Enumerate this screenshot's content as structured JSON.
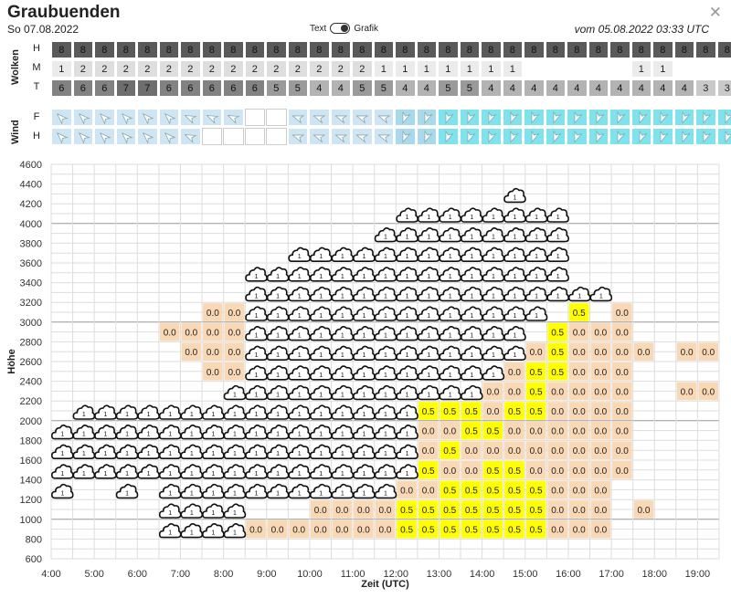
{
  "header": {
    "title": "Graubuenden",
    "date": "So 07.08.2022",
    "issued": "vom 05.08.2022 03:33 UTC",
    "close_icon": "close-icon"
  },
  "toggle": {
    "left_label": "Text",
    "right_label": "Grafik",
    "state": "Grafik"
  },
  "clouds": {
    "label": "Wolken",
    "rows": [
      {
        "label": "H",
        "values": [
          "8",
          "8",
          "8",
          "8",
          "8",
          "8",
          "8",
          "8",
          "8",
          "8",
          "8",
          "8",
          "8",
          "8",
          "8",
          "8",
          "8",
          "8",
          "8",
          "8",
          "8",
          "8",
          "8",
          "8",
          "8",
          "8",
          "8",
          "8",
          "8",
          "8",
          "8",
          "8"
        ]
      },
      {
        "label": "M",
        "values": [
          "1",
          "2",
          "2",
          "2",
          "2",
          "2",
          "2",
          "2",
          "2",
          "2",
          "2",
          "2",
          "2",
          "2",
          "2",
          "1",
          "1",
          "1",
          "1",
          "1",
          "1",
          "1",
          "",
          "",
          "",
          "",
          "",
          "1",
          "1",
          "",
          "",
          ""
        ]
      },
      {
        "label": "T",
        "values": [
          "6",
          "6",
          "6",
          "7",
          "7",
          "6",
          "6",
          "6",
          "6",
          "6",
          "5",
          "5",
          "4",
          "4",
          "5",
          "5",
          "4",
          "4",
          "5",
          "5",
          "4",
          "4",
          "4",
          "4",
          "4",
          "4",
          "4",
          "4",
          "4",
          "4",
          "3",
          "3"
        ]
      }
    ],
    "colors": {
      "8": "#5a5a5a",
      "7": "#6e6e6e",
      "6": "#828282",
      "5": "#9a9a9a",
      "4": "#b3b3b3",
      "3": "#c9c9c9",
      "2": "#dedede",
      "1": "#ebebeb",
      "": "#ffffff"
    }
  },
  "wind": {
    "label": "Wind",
    "row_labels": [
      "F",
      "H"
    ],
    "icon": "wind-arrow-icon"
  },
  "chart_data": {
    "type": "heatmap",
    "xlabel": "Zeit (UTC)",
    "ylabel": "Höhe",
    "x_ticks": [
      "4:00",
      "5:00",
      "6:00",
      "7:00",
      "8:00",
      "9:00",
      "10:00",
      "11:00",
      "12:00",
      "13:00",
      "14:00",
      "15:00",
      "16:00",
      "17:00",
      "18:00",
      "19:00"
    ],
    "x_range": [
      "4:00",
      "19:30"
    ],
    "x_step_minutes": 30,
    "y_ticks": [
      600,
      800,
      1000,
      1200,
      1400,
      1600,
      1800,
      2000,
      2200,
      2400,
      2600,
      2800,
      3000,
      3200,
      3400,
      3600,
      3800,
      4000,
      4200,
      4400,
      4600
    ],
    "ylim": [
      600,
      4600
    ],
    "cloud_icon": "cloud-icon",
    "legend_colors": {
      "0.0": "#f9d9b5",
      "0.5": "#ffff00"
    },
    "cloud_cells": [
      [
        0,
        1300
      ],
      [
        0,
        1500
      ],
      [
        1,
        1500
      ],
      [
        2,
        1500
      ],
      [
        3,
        1500
      ],
      [
        4,
        1500
      ],
      [
        5,
        1500
      ],
      [
        6,
        1500
      ],
      [
        7,
        1500
      ],
      [
        8,
        1500
      ],
      [
        9,
        1500
      ],
      [
        10,
        1500
      ],
      [
        11,
        1500
      ],
      [
        12,
        1500
      ],
      [
        13,
        1500
      ],
      [
        14,
        1500
      ],
      [
        15,
        1500
      ],
      [
        16,
        1500
      ],
      [
        0,
        1700
      ],
      [
        1,
        1700
      ],
      [
        2,
        1700
      ],
      [
        3,
        1700
      ],
      [
        4,
        1700
      ],
      [
        5,
        1700
      ],
      [
        6,
        1700
      ],
      [
        7,
        1700
      ],
      [
        8,
        1700
      ],
      [
        9,
        1700
      ],
      [
        10,
        1700
      ],
      [
        11,
        1700
      ],
      [
        12,
        1700
      ],
      [
        13,
        1700
      ],
      [
        14,
        1700
      ],
      [
        15,
        1700
      ],
      [
        16,
        1700
      ],
      [
        0,
        1900
      ],
      [
        1,
        1900
      ],
      [
        2,
        1900
      ],
      [
        3,
        1900
      ],
      [
        4,
        1900
      ],
      [
        5,
        1900
      ],
      [
        6,
        1900
      ],
      [
        7,
        1900
      ],
      [
        8,
        1900
      ],
      [
        9,
        1900
      ],
      [
        10,
        1900
      ],
      [
        11,
        1900
      ],
      [
        12,
        1900
      ],
      [
        13,
        1900
      ],
      [
        14,
        1900
      ],
      [
        15,
        1900
      ],
      [
        16,
        1900
      ],
      [
        1,
        2100
      ],
      [
        2,
        2100
      ],
      [
        3,
        2100
      ],
      [
        4,
        2100
      ],
      [
        5,
        2100
      ],
      [
        6,
        2100
      ],
      [
        7,
        2100
      ],
      [
        8,
        2100
      ],
      [
        9,
        2100
      ],
      [
        10,
        2100
      ],
      [
        11,
        2100
      ],
      [
        12,
        2100
      ],
      [
        13,
        2100
      ],
      [
        14,
        2100
      ],
      [
        15,
        2100
      ],
      [
        16,
        2100
      ],
      [
        8,
        2300
      ],
      [
        9,
        2300
      ],
      [
        10,
        2300
      ],
      [
        11,
        2300
      ],
      [
        12,
        2300
      ],
      [
        13,
        2300
      ],
      [
        14,
        2300
      ],
      [
        15,
        2300
      ],
      [
        16,
        2300
      ],
      [
        17,
        2300
      ],
      [
        18,
        2300
      ],
      [
        19,
        2300
      ],
      [
        9,
        2500
      ],
      [
        10,
        2500
      ],
      [
        11,
        2500
      ],
      [
        12,
        2500
      ],
      [
        13,
        2500
      ],
      [
        14,
        2500
      ],
      [
        15,
        2500
      ],
      [
        16,
        2500
      ],
      [
        17,
        2500
      ],
      [
        18,
        2500
      ],
      [
        19,
        2500
      ],
      [
        20,
        2500
      ],
      [
        9,
        2700
      ],
      [
        10,
        2700
      ],
      [
        11,
        2700
      ],
      [
        12,
        2700
      ],
      [
        13,
        2700
      ],
      [
        14,
        2700
      ],
      [
        15,
        2700
      ],
      [
        16,
        2700
      ],
      [
        17,
        2700
      ],
      [
        18,
        2700
      ],
      [
        19,
        2700
      ],
      [
        20,
        2700
      ],
      [
        21,
        2700
      ],
      [
        9,
        2900
      ],
      [
        10,
        2900
      ],
      [
        11,
        2900
      ],
      [
        12,
        2900
      ],
      [
        13,
        2900
      ],
      [
        14,
        2900
      ],
      [
        15,
        2900
      ],
      [
        16,
        2900
      ],
      [
        17,
        2900
      ],
      [
        18,
        2900
      ],
      [
        19,
        2900
      ],
      [
        20,
        2900
      ],
      [
        21,
        2900
      ],
      [
        9,
        3100
      ],
      [
        10,
        3100
      ],
      [
        11,
        3100
      ],
      [
        12,
        3100
      ],
      [
        13,
        3100
      ],
      [
        14,
        3100
      ],
      [
        15,
        3100
      ],
      [
        16,
        3100
      ],
      [
        17,
        3100
      ],
      [
        18,
        3100
      ],
      [
        19,
        3100
      ],
      [
        20,
        3100
      ],
      [
        21,
        3100
      ],
      [
        22,
        3100
      ],
      [
        9,
        3300
      ],
      [
        10,
        3300
      ],
      [
        11,
        3300
      ],
      [
        12,
        3300
      ],
      [
        13,
        3300
      ],
      [
        14,
        3300
      ],
      [
        15,
        3300
      ],
      [
        16,
        3300
      ],
      [
        17,
        3300
      ],
      [
        18,
        3300
      ],
      [
        19,
        3300
      ],
      [
        20,
        3300
      ],
      [
        21,
        3300
      ],
      [
        22,
        3300
      ],
      [
        23,
        3300
      ],
      [
        24,
        3300
      ],
      [
        25,
        3300
      ],
      [
        9,
        3500
      ],
      [
        10,
        3500
      ],
      [
        11,
        3500
      ],
      [
        12,
        3500
      ],
      [
        13,
        3500
      ],
      [
        14,
        3500
      ],
      [
        15,
        3500
      ],
      [
        16,
        3500
      ],
      [
        17,
        3500
      ],
      [
        18,
        3500
      ],
      [
        19,
        3500
      ],
      [
        20,
        3500
      ],
      [
        21,
        3500
      ],
      [
        22,
        3500
      ],
      [
        23,
        3500
      ],
      [
        11,
        3700
      ],
      [
        12,
        3700
      ],
      [
        13,
        3700
      ],
      [
        14,
        3700
      ],
      [
        15,
        3700
      ],
      [
        16,
        3700
      ],
      [
        17,
        3700
      ],
      [
        18,
        3700
      ],
      [
        19,
        3700
      ],
      [
        20,
        3700
      ],
      [
        21,
        3700
      ],
      [
        22,
        3700
      ],
      [
        23,
        3700
      ],
      [
        15,
        3900
      ],
      [
        16,
        3900
      ],
      [
        17,
        3900
      ],
      [
        18,
        3900
      ],
      [
        19,
        3900
      ],
      [
        20,
        3900
      ],
      [
        21,
        3900
      ],
      [
        22,
        3900
      ],
      [
        23,
        3900
      ],
      [
        16,
        4100
      ],
      [
        17,
        4100
      ],
      [
        18,
        4100
      ],
      [
        19,
        4100
      ],
      [
        20,
        4100
      ],
      [
        21,
        4100
      ],
      [
        22,
        4100
      ],
      [
        23,
        4100
      ],
      [
        21,
        4300
      ],
      [
        5,
        900
      ],
      [
        6,
        900
      ],
      [
        7,
        900
      ],
      [
        8,
        900
      ],
      [
        5,
        1100
      ],
      [
        6,
        1100
      ],
      [
        7,
        1100
      ],
      [
        8,
        1100
      ],
      [
        3,
        1300
      ],
      [
        5,
        1300
      ],
      [
        6,
        1300
      ],
      [
        7,
        1300
      ],
      [
        8,
        1300
      ],
      [
        9,
        1300
      ],
      [
        10,
        1300
      ],
      [
        11,
        1300
      ],
      [
        12,
        1300
      ],
      [
        13,
        1300
      ],
      [
        14,
        1300
      ],
      [
        15,
        1300
      ]
    ],
    "value_cells": [
      [
        9,
        900,
        "0.0"
      ],
      [
        10,
        900,
        "0.0"
      ],
      [
        11,
        900,
        "0.0"
      ],
      [
        12,
        900,
        "0.0"
      ],
      [
        13,
        900,
        "0.0"
      ],
      [
        14,
        900,
        "0.0"
      ],
      [
        15,
        900,
        "0.0"
      ],
      [
        16,
        900,
        "0.5"
      ],
      [
        17,
        900,
        "0.5"
      ],
      [
        18,
        900,
        "0.5"
      ],
      [
        19,
        900,
        "0.5"
      ],
      [
        20,
        900,
        "0.5"
      ],
      [
        21,
        900,
        "0.5"
      ],
      [
        22,
        900,
        "0.5"
      ],
      [
        23,
        900,
        "0.0"
      ],
      [
        24,
        900,
        "0.0"
      ],
      [
        25,
        900,
        "0.0"
      ],
      [
        12,
        1100,
        "0.0"
      ],
      [
        13,
        1100,
        "0.0"
      ],
      [
        14,
        1100,
        "0.0"
      ],
      [
        15,
        1100,
        "0.0"
      ],
      [
        16,
        1100,
        "0.5"
      ],
      [
        17,
        1100,
        "0.5"
      ],
      [
        18,
        1100,
        "0.5"
      ],
      [
        19,
        1100,
        "0.5"
      ],
      [
        20,
        1100,
        "0.5"
      ],
      [
        21,
        1100,
        "0.5"
      ],
      [
        22,
        1100,
        "0.5"
      ],
      [
        23,
        1100,
        "0.0"
      ],
      [
        24,
        1100,
        "0.0"
      ],
      [
        25,
        1100,
        "0.0"
      ],
      [
        27,
        1100,
        "0.0"
      ],
      [
        16,
        1300,
        "0.0"
      ],
      [
        17,
        1300,
        "0.0"
      ],
      [
        18,
        1300,
        "0.5"
      ],
      [
        19,
        1300,
        "0.5"
      ],
      [
        20,
        1300,
        "0.5"
      ],
      [
        21,
        1300,
        "0.5"
      ],
      [
        22,
        1300,
        "0.5"
      ],
      [
        23,
        1300,
        "0.0"
      ],
      [
        24,
        1300,
        "0.0"
      ],
      [
        25,
        1300,
        "0.0"
      ],
      [
        17,
        1500,
        "0.5"
      ],
      [
        18,
        1500,
        "0.0"
      ],
      [
        19,
        1500,
        "0.0"
      ],
      [
        20,
        1500,
        "0.5"
      ],
      [
        21,
        1500,
        "0.5"
      ],
      [
        22,
        1500,
        "0.0"
      ],
      [
        23,
        1500,
        "0.0"
      ],
      [
        24,
        1500,
        "0.0"
      ],
      [
        25,
        1500,
        "0.0"
      ],
      [
        26,
        1500,
        "0.0"
      ],
      [
        17,
        1700,
        "0.0"
      ],
      [
        18,
        1700,
        "0.5"
      ],
      [
        19,
        1700,
        "0.0"
      ],
      [
        20,
        1700,
        "0.0"
      ],
      [
        21,
        1700,
        "0.0"
      ],
      [
        22,
        1700,
        "0.0"
      ],
      [
        23,
        1700,
        "0.0"
      ],
      [
        24,
        1700,
        "0.0"
      ],
      [
        25,
        1700,
        "0.0"
      ],
      [
        26,
        1700,
        "0.0"
      ],
      [
        17,
        1900,
        "0.0"
      ],
      [
        18,
        1900,
        "0.0"
      ],
      [
        19,
        1900,
        "0.5"
      ],
      [
        20,
        1900,
        "0.5"
      ],
      [
        21,
        1900,
        "0.0"
      ],
      [
        22,
        1900,
        "0.0"
      ],
      [
        23,
        1900,
        "0.0"
      ],
      [
        24,
        1900,
        "0.0"
      ],
      [
        25,
        1900,
        "0.0"
      ],
      [
        26,
        1900,
        "0.0"
      ],
      [
        17,
        2100,
        "0.5"
      ],
      [
        18,
        2100,
        "0.5"
      ],
      [
        19,
        2100,
        "0.5"
      ],
      [
        20,
        2100,
        "0.0"
      ],
      [
        21,
        2100,
        "0.5"
      ],
      [
        22,
        2100,
        "0.5"
      ],
      [
        23,
        2100,
        "0.0"
      ],
      [
        24,
        2100,
        "0.0"
      ],
      [
        25,
        2100,
        "0.0"
      ],
      [
        26,
        2100,
        "0.0"
      ],
      [
        20,
        2300,
        "0.0"
      ],
      [
        21,
        2300,
        "0.0"
      ],
      [
        22,
        2300,
        "0.5"
      ],
      [
        23,
        2300,
        "0.0"
      ],
      [
        24,
        2300,
        "0.0"
      ],
      [
        25,
        2300,
        "0.0"
      ],
      [
        26,
        2300,
        "0.0"
      ],
      [
        29,
        2300,
        "0.0"
      ],
      [
        30,
        2300,
        "0.0"
      ],
      [
        21,
        2500,
        "0.0"
      ],
      [
        22,
        2500,
        "0.5"
      ],
      [
        23,
        2500,
        "0.5"
      ],
      [
        24,
        2500,
        "0.0"
      ],
      [
        25,
        2500,
        "0.0"
      ],
      [
        26,
        2500,
        "0.0"
      ],
      [
        22,
        2700,
        "0.0"
      ],
      [
        23,
        2700,
        "0.5"
      ],
      [
        24,
        2700,
        "0.0"
      ],
      [
        25,
        2700,
        "0.0"
      ],
      [
        26,
        2700,
        "0.0"
      ],
      [
        27,
        2700,
        "0.0"
      ],
      [
        29,
        2700,
        "0.0"
      ],
      [
        30,
        2700,
        "0.0"
      ],
      [
        23,
        2900,
        "0.5"
      ],
      [
        24,
        2900,
        "0.0"
      ],
      [
        25,
        2900,
        "0.0"
      ],
      [
        26,
        2900,
        "0.0"
      ],
      [
        24,
        3100,
        "0.5"
      ],
      [
        26,
        3100,
        "0.0"
      ],
      [
        6,
        2700,
        "0.0"
      ],
      [
        7,
        2700,
        "0.0"
      ],
      [
        8,
        2700,
        "0.0"
      ],
      [
        5,
        2900,
        "0.0"
      ],
      [
        6,
        2900,
        "0.0"
      ],
      [
        7,
        2900,
        "0.0"
      ],
      [
        8,
        2900,
        "0.0"
      ],
      [
        7,
        2500,
        "0.0"
      ],
      [
        8,
        2500,
        "0.0"
      ],
      [
        7,
        3100,
        "0.0"
      ],
      [
        8,
        3100,
        "0.0"
      ]
    ]
  }
}
